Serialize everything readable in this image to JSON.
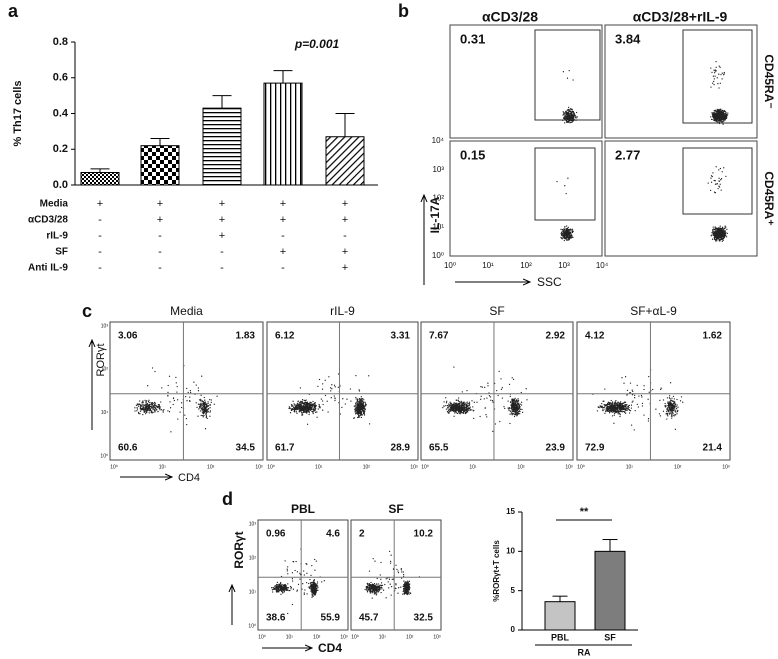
{
  "panel_labels": [
    "a",
    "b",
    "c",
    "d"
  ],
  "chart_data": [
    {
      "type": "bar",
      "y_label": "% Th17 cells",
      "annotation": "p=0.001",
      "values": [
        0.07,
        0.22,
        0.43,
        0.57,
        0.27
      ],
      "errors": [
        0.02,
        0.04,
        0.07,
        0.07,
        0.13
      ],
      "patterns": [
        "checker-fine",
        "checker",
        "hlines",
        "vlines",
        "diag"
      ],
      "ylim": [
        0,
        0.8
      ],
      "yticks": [
        {
          "value": 0,
          "label": "0.0"
        },
        0.2,
        0.4,
        0.6,
        0.8
      ],
      "conditions": [
        {
          "name": "Media",
          "signs": [
            "+",
            "+",
            "+",
            "+",
            "+"
          ]
        },
        {
          "name": "αCD3/28",
          "signs": [
            "-",
            "+",
            "+",
            "+",
            "+"
          ]
        },
        {
          "name": "rIL-9",
          "signs": [
            "-",
            "-",
            "+",
            "-",
            "-"
          ]
        },
        {
          "name": "SF",
          "signs": [
            "-",
            "-",
            "-",
            "+",
            "+"
          ]
        },
        {
          "name": "Anti IL-9",
          "signs": [
            "-",
            "-",
            "-",
            "-",
            "+"
          ]
        }
      ]
    },
    {
      "type": "bar",
      "y_label": "%RORγt+T cells",
      "annotation": "**",
      "categories": [
        "PBL",
        "SF"
      ],
      "group_label": "RA",
      "colors": [
        "#c4c4c4",
        "#7d7d7d"
      ],
      "values": [
        3.6,
        10
      ],
      "errors": [
        0.7,
        1.5
      ],
      "ylim": [
        0,
        15
      ],
      "yticks": [
        0,
        5,
        10,
        15
      ]
    }
  ],
  "flow_b": {
    "columns": [
      "αCD3/28",
      "αCD3/28+rIL-9"
    ],
    "rows": [
      "CD45RA⁻",
      "CD45RA⁺"
    ],
    "gate_values": [
      [
        0.31,
        3.84
      ],
      [
        0.15,
        2.77
      ]
    ],
    "y_label": "IL-17A",
    "x_label": "SSC",
    "ticks": [
      "10⁰",
      "10¹",
      "10²",
      "10³",
      "10⁴"
    ]
  },
  "flow_c": {
    "titles": [
      "Media",
      "rIL-9",
      "SF",
      "SF+αL-9"
    ],
    "quadrants": [
      [
        3.06,
        1.83,
        60.6,
        34.5
      ],
      [
        6.12,
        3.31,
        61.7,
        28.9
      ],
      [
        7.67,
        2.92,
        65.5,
        23.9
      ],
      [
        4.12,
        1.62,
        72.9,
        21.4
      ]
    ],
    "y_label": "RORγt",
    "x_label": "CD4",
    "ticks": [
      "10⁰",
      "10¹",
      "10²",
      "10³"
    ]
  },
  "flow_d": {
    "titles": [
      "PBL",
      "SF"
    ],
    "quadrants": [
      [
        0.96,
        4.6,
        38.6,
        55.9
      ],
      [
        2,
        10.2,
        45.7,
        32.5
      ]
    ],
    "y_label": "RORγt",
    "x_label": "CD4",
    "ticks": [
      "10⁰",
      "10¹",
      "10²",
      "10³"
    ]
  }
}
